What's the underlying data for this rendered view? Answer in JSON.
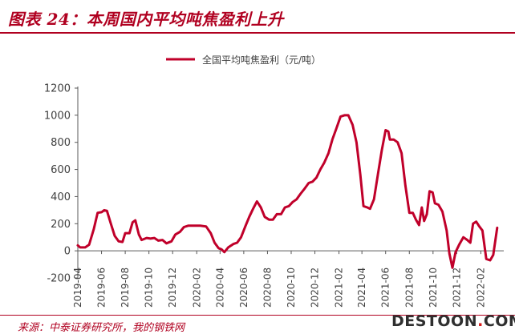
{
  "page": {
    "title": "图表 24：本周国内平均吨焦盈利上升",
    "source": "来源：中泰证券研究所，我的钢铁网",
    "watermark": {
      "main": "DESTOON",
      "dot": ".",
      "suffix": "COM"
    }
  },
  "colors": {
    "accent": "#b00020",
    "line": "#c0002a",
    "axis": "#595959"
  },
  "chart_data": {
    "type": "line",
    "legend": "全国平均吨焦盈利（元/吨）",
    "legend_position": "top-center",
    "grid": false,
    "ylim": [
      -200,
      1200
    ],
    "yticks": [
      -200,
      0,
      200,
      400,
      600,
      800,
      1000,
      1200
    ],
    "x_range": [
      "2019-04",
      "2022-04"
    ],
    "xtick_labels": [
      "2019-04",
      "2019-06",
      "2019-08",
      "2019-10",
      "2019-12",
      "2020-02",
      "2020-04",
      "2020-06",
      "2020-08",
      "2020-10",
      "2020-12",
      "2021-02",
      "2021-04",
      "2021-06",
      "2021-08",
      "2021-10",
      "2021-12",
      "2022-02"
    ],
    "series": [
      {
        "name": "全国平均吨焦盈利（元/吨）",
        "points": [
          [
            "2019-04-01",
            40
          ],
          [
            "2019-04-07",
            25
          ],
          [
            "2019-04-20",
            25
          ],
          [
            "2019-04-30",
            45
          ],
          [
            "2019-05-12",
            160
          ],
          [
            "2019-05-22",
            280
          ],
          [
            "2019-06-01",
            285
          ],
          [
            "2019-06-08",
            300
          ],
          [
            "2019-06-15",
            295
          ],
          [
            "2019-06-25",
            200
          ],
          [
            "2019-07-05",
            110
          ],
          [
            "2019-07-15",
            70
          ],
          [
            "2019-07-25",
            65
          ],
          [
            "2019-08-01",
            130
          ],
          [
            "2019-08-12",
            130
          ],
          [
            "2019-08-20",
            210
          ],
          [
            "2019-08-27",
            225
          ],
          [
            "2019-09-05",
            120
          ],
          [
            "2019-09-12",
            80
          ],
          [
            "2019-09-25",
            95
          ],
          [
            "2019-10-05",
            90
          ],
          [
            "2019-10-15",
            95
          ],
          [
            "2019-10-25",
            75
          ],
          [
            "2019-11-05",
            80
          ],
          [
            "2019-11-15",
            55
          ],
          [
            "2019-11-28",
            70
          ],
          [
            "2019-12-08",
            120
          ],
          [
            "2019-12-20",
            140
          ],
          [
            "2019-12-30",
            175
          ],
          [
            "2020-01-10",
            185
          ],
          [
            "2020-01-25",
            185
          ],
          [
            "2020-02-10",
            185
          ],
          [
            "2020-02-25",
            180
          ],
          [
            "2020-03-08",
            130
          ],
          [
            "2020-03-18",
            60
          ],
          [
            "2020-03-28",
            20
          ],
          [
            "2020-04-05",
            10
          ],
          [
            "2020-04-12",
            -10
          ],
          [
            "2020-04-22",
            25
          ],
          [
            "2020-05-05",
            50
          ],
          [
            "2020-05-15",
            60
          ],
          [
            "2020-05-25",
            100
          ],
          [
            "2020-06-05",
            180
          ],
          [
            "2020-06-15",
            250
          ],
          [
            "2020-06-25",
            310
          ],
          [
            "2020-07-05",
            365
          ],
          [
            "2020-07-15",
            320
          ],
          [
            "2020-07-25",
            250
          ],
          [
            "2020-08-05",
            230
          ],
          [
            "2020-08-15",
            230
          ],
          [
            "2020-08-25",
            270
          ],
          [
            "2020-09-05",
            270
          ],
          [
            "2020-09-15",
            320
          ],
          [
            "2020-09-25",
            330
          ],
          [
            "2020-10-05",
            360
          ],
          [
            "2020-10-15",
            380
          ],
          [
            "2020-10-25",
            420
          ],
          [
            "2020-11-05",
            460
          ],
          [
            "2020-11-15",
            500
          ],
          [
            "2020-11-25",
            510
          ],
          [
            "2020-12-05",
            540
          ],
          [
            "2020-12-15",
            600
          ],
          [
            "2020-12-25",
            650
          ],
          [
            "2021-01-05",
            720
          ],
          [
            "2021-01-15",
            820
          ],
          [
            "2021-01-25",
            900
          ],
          [
            "2021-02-05",
            990
          ],
          [
            "2021-02-15",
            1000
          ],
          [
            "2021-02-25",
            1000
          ],
          [
            "2021-03-08",
            930
          ],
          [
            "2021-03-18",
            800
          ],
          [
            "2021-03-28",
            560
          ],
          [
            "2021-04-05",
            330
          ],
          [
            "2021-04-15",
            320
          ],
          [
            "2021-04-22",
            310
          ],
          [
            "2021-05-02",
            380
          ],
          [
            "2021-05-12",
            560
          ],
          [
            "2021-05-22",
            740
          ],
          [
            "2021-06-01",
            890
          ],
          [
            "2021-06-08",
            880
          ],
          [
            "2021-06-12",
            820
          ],
          [
            "2021-06-22",
            820
          ],
          [
            "2021-07-02",
            800
          ],
          [
            "2021-07-12",
            720
          ],
          [
            "2021-07-22",
            480
          ],
          [
            "2021-08-01",
            280
          ],
          [
            "2021-08-10",
            280
          ],
          [
            "2021-08-18",
            230
          ],
          [
            "2021-08-26",
            190
          ],
          [
            "2021-09-02",
            320
          ],
          [
            "2021-09-08",
            220
          ],
          [
            "2021-09-15",
            270
          ],
          [
            "2021-09-22",
            440
          ],
          [
            "2021-09-30",
            430
          ],
          [
            "2021-10-06",
            350
          ],
          [
            "2021-10-15",
            340
          ],
          [
            "2021-10-25",
            290
          ],
          [
            "2021-11-05",
            150
          ],
          [
            "2021-11-12",
            -20
          ],
          [
            "2021-11-20",
            -125
          ],
          [
            "2021-11-28",
            -10
          ],
          [
            "2021-12-08",
            50
          ],
          [
            "2021-12-18",
            100
          ],
          [
            "2021-12-28",
            80
          ],
          [
            "2022-01-05",
            60
          ],
          [
            "2022-01-12",
            200
          ],
          [
            "2022-01-20",
            215
          ],
          [
            "2022-01-28",
            180
          ],
          [
            "2022-02-05",
            150
          ],
          [
            "2022-02-15",
            -60
          ],
          [
            "2022-02-25",
            -70
          ],
          [
            "2022-03-05",
            -30
          ],
          [
            "2022-03-15",
            170
          ]
        ]
      }
    ]
  }
}
